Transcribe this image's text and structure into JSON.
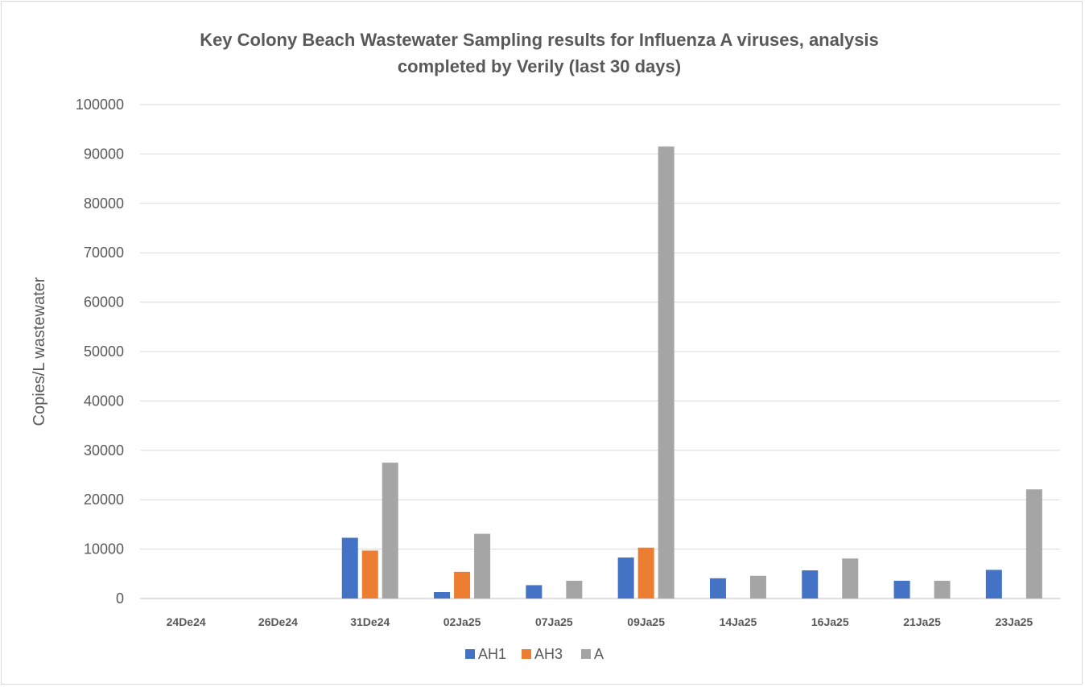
{
  "chart_data": {
    "type": "bar",
    "title_line1": "Key Colony Beach Wastewater Sampling results for Influenza A  viruses, analysis",
    "title_line2": "completed by Verily (last 30 days)",
    "xlabel": "",
    "ylabel": "Copies/L wastewater",
    "ylim": [
      0,
      100000
    ],
    "ytick_step": 10000,
    "grid": true,
    "legend_position": "bottom",
    "categories": [
      "24De24",
      "26De24",
      "31De24",
      "02Ja25",
      "07Ja25",
      "09Ja25",
      "14Ja25",
      "16Ja25",
      "21Ja25",
      "23Ja25"
    ],
    "series": [
      {
        "name": "AH1",
        "color": "#4472c4",
        "values": [
          0,
          0,
          12300,
          1300,
          2700,
          8300,
          4100,
          5700,
          3600,
          5800
        ]
      },
      {
        "name": "AH3",
        "color": "#ed7d31",
        "values": [
          0,
          0,
          9700,
          5400,
          0,
          10300,
          0,
          0,
          0,
          0
        ]
      },
      {
        "name": "A",
        "color": "#a5a5a5",
        "values": [
          0,
          0,
          27500,
          13100,
          3600,
          91500,
          4600,
          8100,
          3600,
          22100
        ]
      }
    ]
  }
}
